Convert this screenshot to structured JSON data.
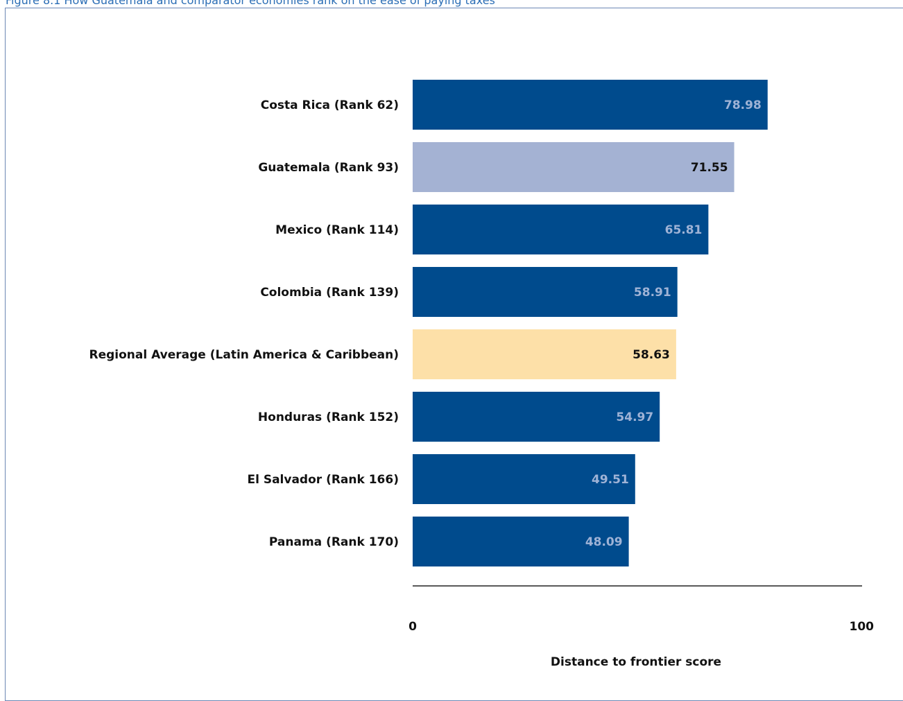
{
  "figure": {
    "title": "Figure 8.1 How Guatemala and comparator economies rank on the ease of paying taxes"
  },
  "chart_data": {
    "type": "bar",
    "orientation": "horizontal",
    "title": "Figure 8.1 How Guatemala and comparator economies rank on the ease of paying taxes",
    "xlabel": "Distance to frontier score",
    "ylabel": "",
    "xlim": [
      0,
      100
    ],
    "x_ticks": [
      "0",
      "100"
    ],
    "grid": false,
    "categories": [
      "Costa Rica (Rank 62)",
      "Guatemala (Rank 93)",
      "Mexico (Rank 114)",
      "Colombia (Rank 139)",
      "Regional Average (Latin America & Caribbean)",
      "Honduras (Rank 152)",
      "El Salvador (Rank 166)",
      "Panama (Rank 170)"
    ],
    "values": [
      78.98,
      71.55,
      65.81,
      58.91,
      58.63,
      54.97,
      49.51,
      48.09
    ],
    "value_labels": [
      "78.98",
      "71.55",
      "65.81",
      "58.91",
      "58.63",
      "54.97",
      "49.51",
      "48.09"
    ],
    "bar_colors": [
      "#004b8d",
      "#a4b2d3",
      "#004b8d",
      "#004b8d",
      "#fde0a8",
      "#004b8d",
      "#004b8d",
      "#004b8d"
    ],
    "label_colors": [
      "#9fb3d6",
      "#111111",
      "#9fb3d6",
      "#9fb3d6",
      "#111111",
      "#9fb3d6",
      "#9fb3d6",
      "#9fb3d6"
    ]
  }
}
